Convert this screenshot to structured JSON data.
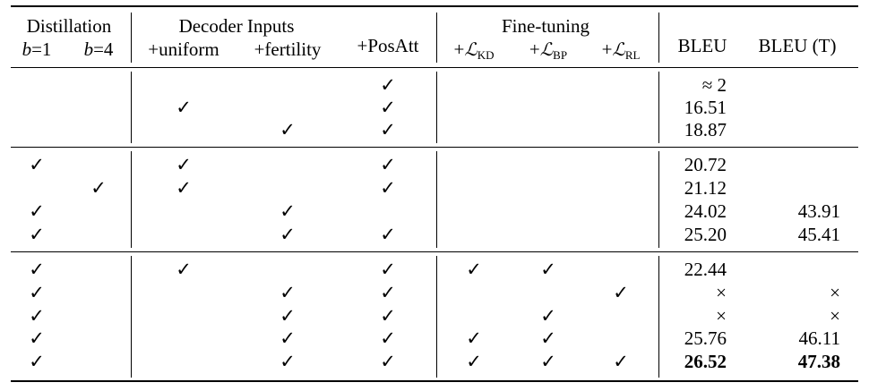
{
  "header": {
    "group_distillation": "Distillation",
    "group_decoder_inputs": "Decoder Inputs",
    "group_fine_tuning": "Fine-tuning",
    "col_b1": {
      "var": "b",
      "rest": "=1"
    },
    "col_b4": {
      "var": "b",
      "rest": "=4"
    },
    "col_uniform": "+uniform",
    "col_fertility": "+fertility",
    "col_posatt": "+PosAtt",
    "col_kd": {
      "prefix": "+",
      "loss": "ℒ",
      "sub": "KD"
    },
    "col_bp": {
      "prefix": "+",
      "loss": "ℒ",
      "sub": "BP"
    },
    "col_rl": {
      "prefix": "+",
      "loss": "ℒ",
      "sub": "RL"
    },
    "col_bleu": "BLEU",
    "col_bleu_t": "BLEU (T)"
  },
  "check_glyph": "✓",
  "rows": [
    {
      "checks": [
        "",
        "",
        "",
        "",
        "✓",
        "",
        "",
        ""
      ],
      "bleu": "≈ 2",
      "bleu_t": ""
    },
    {
      "checks": [
        "",
        "",
        "✓",
        "",
        "✓",
        "",
        "",
        ""
      ],
      "bleu": "16.51",
      "bleu_t": ""
    },
    {
      "checks": [
        "",
        "",
        "",
        "✓",
        "✓",
        "",
        "",
        ""
      ],
      "bleu": "18.87",
      "bleu_t": ""
    },
    {
      "checks": [
        "✓",
        "",
        "✓",
        "",
        "✓",
        "",
        "",
        ""
      ],
      "bleu": "20.72",
      "bleu_t": ""
    },
    {
      "checks": [
        "",
        "✓",
        "✓",
        "",
        "✓",
        "",
        "",
        ""
      ],
      "bleu": "21.12",
      "bleu_t": ""
    },
    {
      "checks": [
        "✓",
        "",
        "",
        "✓",
        "",
        "",
        "",
        ""
      ],
      "bleu": "24.02",
      "bleu_t": "43.91"
    },
    {
      "checks": [
        "✓",
        "",
        "",
        "✓",
        "✓",
        "",
        "",
        ""
      ],
      "bleu": "25.20",
      "bleu_t": "45.41"
    },
    {
      "checks": [
        "✓",
        "",
        "✓",
        "",
        "✓",
        "✓",
        "✓",
        ""
      ],
      "bleu": "22.44",
      "bleu_t": ""
    },
    {
      "checks": [
        "✓",
        "",
        "",
        "✓",
        "✓",
        "",
        "",
        "✓"
      ],
      "bleu": "×",
      "bleu_t": "×"
    },
    {
      "checks": [
        "✓",
        "",
        "",
        "✓",
        "✓",
        "",
        "✓",
        ""
      ],
      "bleu": "×",
      "bleu_t": "×"
    },
    {
      "checks": [
        "✓",
        "",
        "",
        "✓",
        "✓",
        "✓",
        "✓",
        ""
      ],
      "bleu": "25.76",
      "bleu_t": "46.11"
    },
    {
      "checks": [
        "✓",
        "",
        "",
        "✓",
        "✓",
        "✓",
        "✓",
        "✓"
      ],
      "bleu": "26.52",
      "bleu_t": "47.38",
      "bold": true
    }
  ]
}
